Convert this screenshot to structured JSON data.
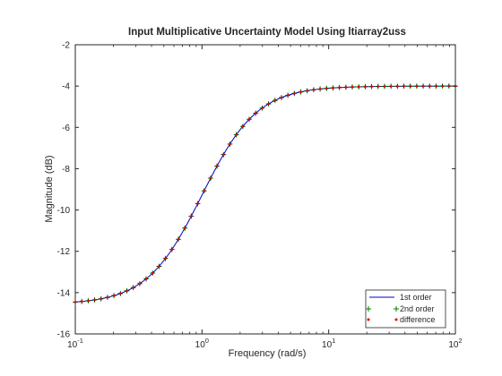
{
  "chart_data": {
    "type": "line",
    "title": "Input Multiplicative Uncertainty Model Using ltiarray2uss",
    "xlabel": "Frequency  (rad/s)",
    "ylabel": "Magnitude (dB)",
    "xscale": "log",
    "xlim": [
      0.1,
      100
    ],
    "ylim": [
      -16,
      -2
    ],
    "xticks": [
      0.1,
      1,
      10,
      100
    ],
    "xtick_labels": [
      {
        "base": "10",
        "exp": "-1"
      },
      {
        "base": "10",
        "exp": "0"
      },
      {
        "base": "10",
        "exp": "1"
      },
      {
        "base": "10",
        "exp": "2"
      }
    ],
    "yticks": [
      -16,
      -14,
      -12,
      -10,
      -8,
      -6,
      -4,
      -2
    ],
    "ytick_labels": [
      "-16",
      "-14",
      "-12",
      "-10",
      "-8",
      "-6",
      "-4",
      "-2"
    ],
    "grid": false,
    "legend_position": "bottom-right",
    "model": {
      "low_dB": -14.56,
      "high_dB": -4.0,
      "midpoint_rad_s": 1.0,
      "points": 60
    },
    "series": [
      {
        "name": "1st order",
        "style": "line",
        "color": "#0000c8"
      },
      {
        "name": "2nd order",
        "style": "plus-marker",
        "color": "#008000"
      },
      {
        "name": "difference",
        "style": "dot-marker",
        "color": "#e00000"
      }
    ],
    "black_plus_overlay_color": "#000000"
  }
}
